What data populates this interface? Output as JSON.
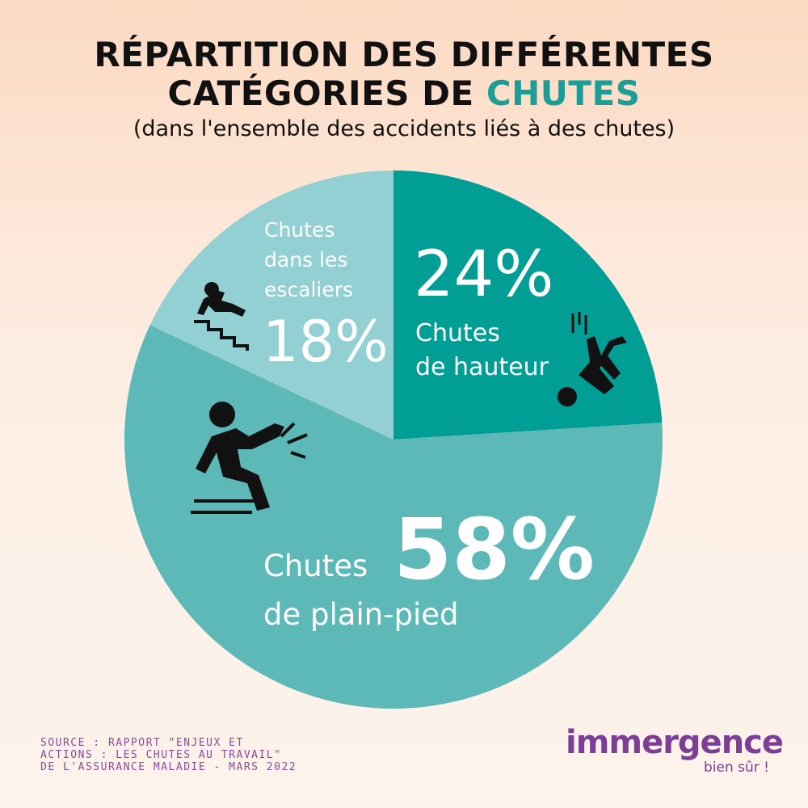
{
  "title": {
    "line1": "RÉPARTITION DES DIFFÉRENTES",
    "line2_prefix": "CATÉGORIES DE",
    "line2_accent": "CHUTES"
  },
  "subtitle": "(dans l'ensemble des accidents liés à des chutes)",
  "chart_data": {
    "type": "pie",
    "slices": [
      {
        "label_line1": "Chutes",
        "label_line2": "de hauteur",
        "value": 24,
        "value_text": "24%",
        "color": "#009e94",
        "icon": "falling-person-icon"
      },
      {
        "label_line1": "Chutes",
        "label_line2": "de plain-pied",
        "value": 58,
        "value_text": "58%",
        "color": "#5db8b8",
        "icon": "slipping-person-icon"
      },
      {
        "label_line1": "Chutes",
        "label_line2": "dans les",
        "label_line3": "escaliers",
        "value": 18,
        "value_text": "18%",
        "color": "#93d0d3",
        "icon": "stairs-fall-icon"
      }
    ]
  },
  "source": "SOURCE : RAPPORT \"ENJEUX ET ACTIONS : LES CHUTES AU TRAVAIL\" DE L'ASSURANCE MALADIE - MARS 2022",
  "logo": {
    "word": "immergence",
    "tagline": "bien sûr !"
  },
  "colors": {
    "accent": "#1a9e95",
    "logo": "#7b3f95"
  }
}
